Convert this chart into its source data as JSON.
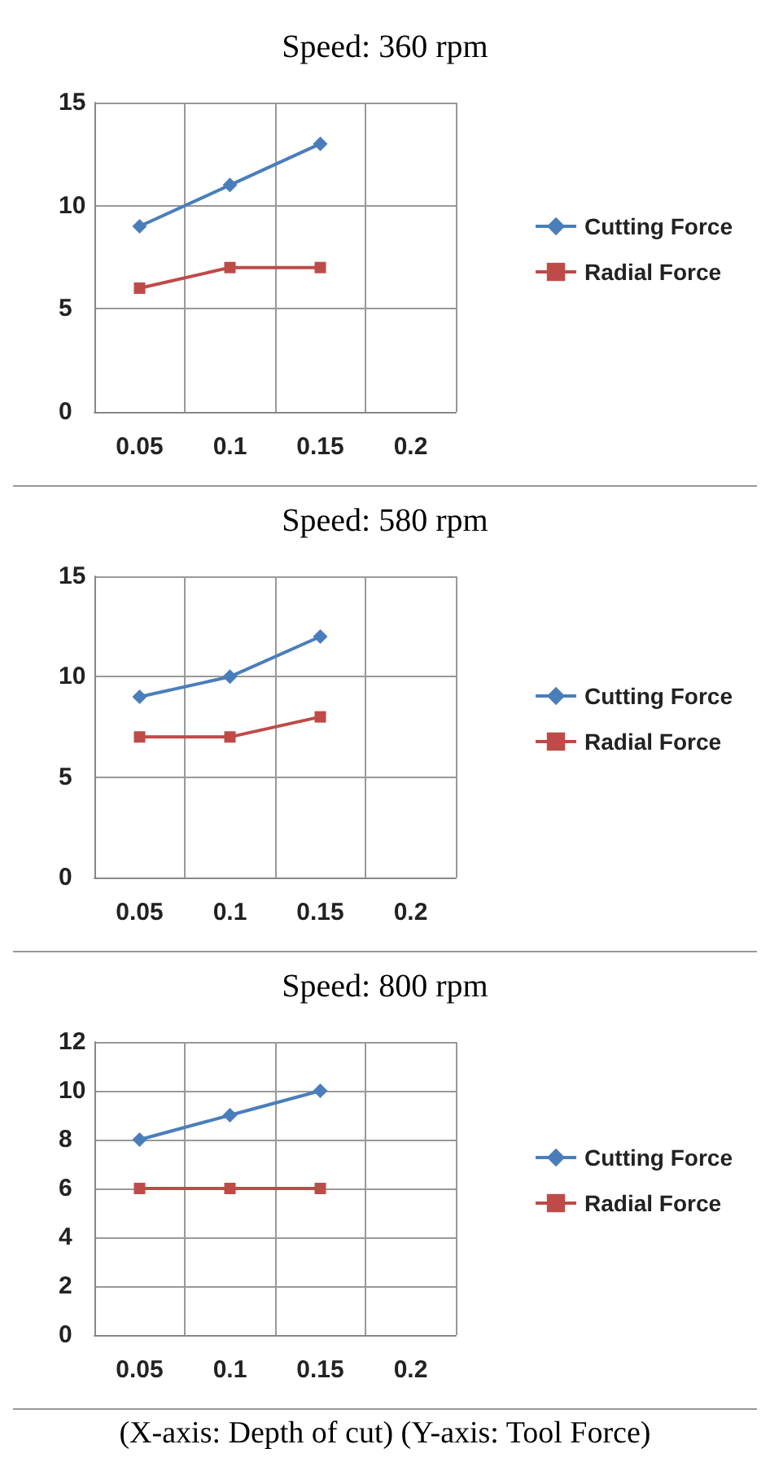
{
  "chart_data": [
    {
      "type": "line",
      "title": "Speed: 360 rpm",
      "categories": [
        "0.05",
        "0.1",
        "0.15",
        "0.2"
      ],
      "series": [
        {
          "name": "Cutting Force",
          "color": "#4a7ebb",
          "marker": "diamond",
          "values": [
            9,
            11,
            13,
            null
          ]
        },
        {
          "name": "Radial Force",
          "color": "#be4b48",
          "marker": "square",
          "values": [
            6,
            7,
            7,
            null
          ]
        }
      ],
      "ylim": [
        0,
        15
      ],
      "yticks": [
        0,
        5,
        10,
        15
      ],
      "grid": true,
      "legend": "right"
    },
    {
      "type": "line",
      "title": "Speed: 580 rpm",
      "categories": [
        "0.05",
        "0.1",
        "0.15",
        "0.2"
      ],
      "series": [
        {
          "name": "Cutting Force",
          "color": "#4a7ebb",
          "marker": "diamond",
          "values": [
            9,
            10,
            12,
            null
          ]
        },
        {
          "name": "Radial Force",
          "color": "#be4b48",
          "marker": "square",
          "values": [
            7,
            7,
            8,
            null
          ]
        }
      ],
      "ylim": [
        0,
        15
      ],
      "yticks": [
        0,
        5,
        10,
        15
      ],
      "grid": true,
      "legend": "right"
    },
    {
      "type": "line",
      "title": "Speed: 800 rpm",
      "categories": [
        "0.05",
        "0.1",
        "0.15",
        "0.2"
      ],
      "series": [
        {
          "name": "Cutting Force",
          "color": "#4a7ebb",
          "marker": "diamond",
          "values": [
            8,
            9,
            10,
            null
          ]
        },
        {
          "name": "Radial Force",
          "color": "#be4b48",
          "marker": "square",
          "values": [
            6,
            6,
            6,
            null
          ]
        }
      ],
      "ylim": [
        0,
        12
      ],
      "yticks": [
        0,
        2,
        4,
        6,
        8,
        10,
        12
      ],
      "grid": true,
      "legend": "right",
      "annotations": [
        "(X-axis: Depth of cut) (Y-axis: Tool Force)"
      ]
    }
  ]
}
